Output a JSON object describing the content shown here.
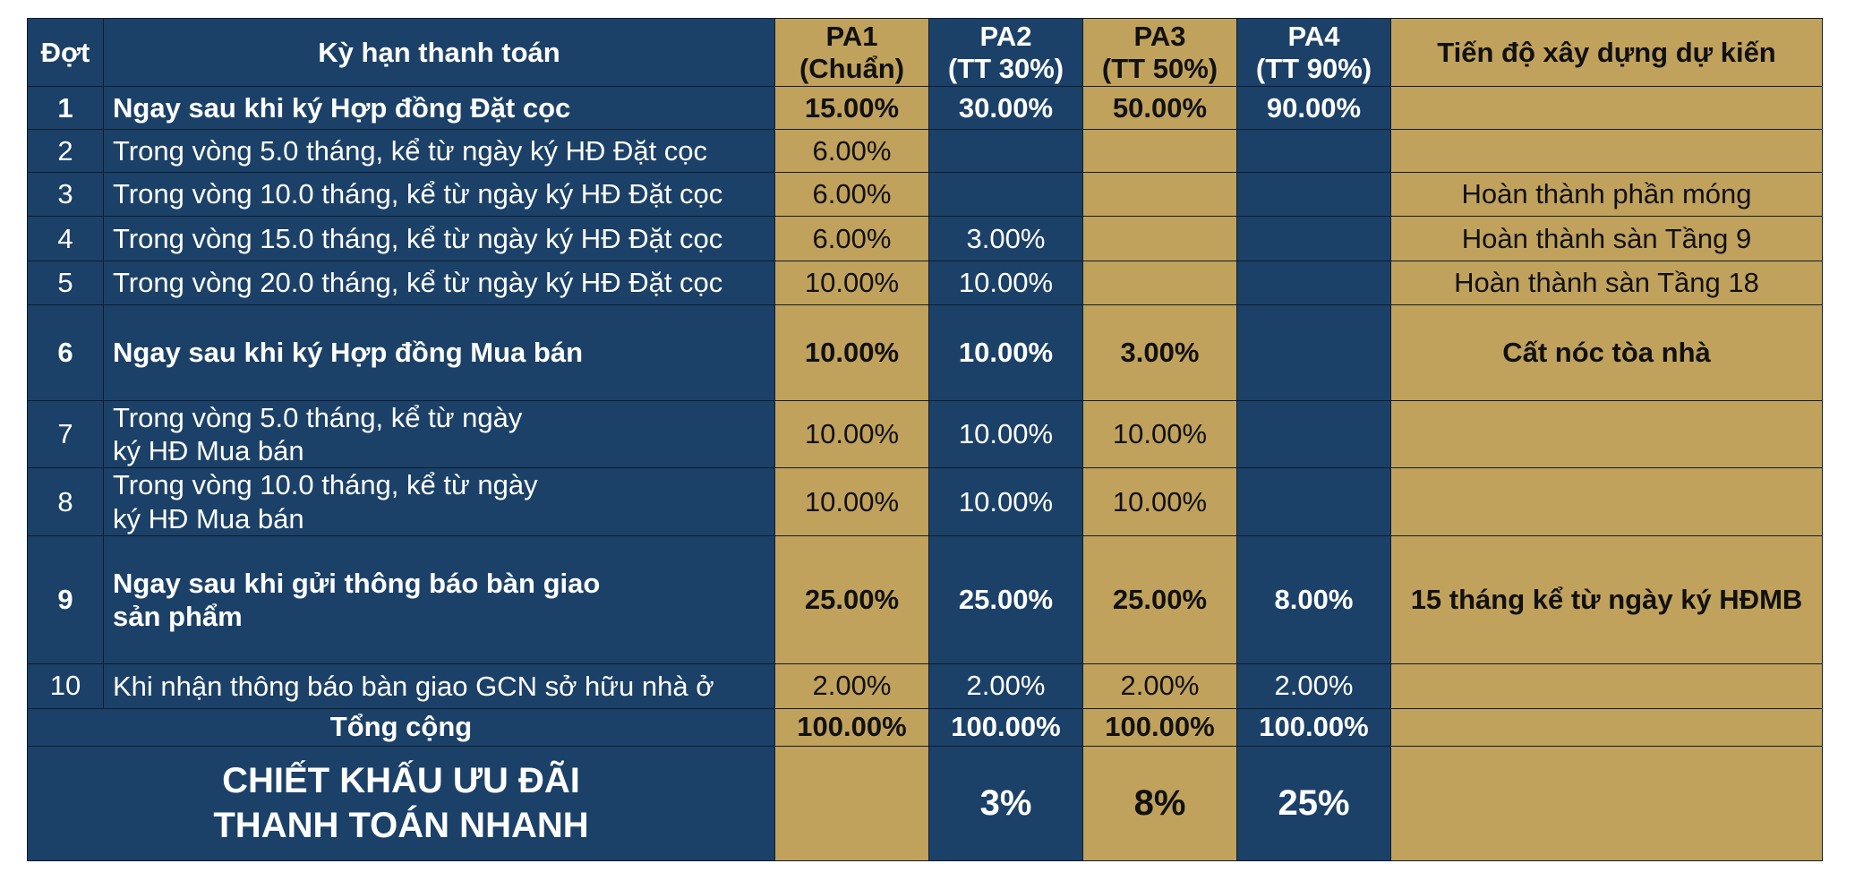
{
  "headers": {
    "dot": "Đợt",
    "ky_han": "Kỳ hạn thanh toán",
    "pa1": "PA1\n(Chuẩn)",
    "pa2": "PA2\n(TT 30%)",
    "pa3": "PA3\n(TT 50%)",
    "pa4": "PA4\n(TT 90%)",
    "tien_do": "Tiến độ xây dựng dự kiến"
  },
  "rows": [
    {
      "dot": "1",
      "ky_han": "Ngay sau khi ký Hợp đồng Đặt cọc",
      "pa1": "15.00%",
      "pa2": "30.00%",
      "pa3": "50.00%",
      "pa4": "90.00%",
      "tien_do": ""
    },
    {
      "dot": "2",
      "ky_han": "Trong vòng 5.0 tháng, kể từ ngày ký HĐ Đặt cọc",
      "pa1": "6.00%",
      "pa2": "",
      "pa3": "",
      "pa4": "",
      "tien_do": ""
    },
    {
      "dot": "3",
      "ky_han": "Trong vòng 10.0 tháng, kể từ ngày ký HĐ Đặt cọc",
      "pa1": "6.00%",
      "pa2": "",
      "pa3": "",
      "pa4": "",
      "tien_do": "Hoàn thành phần móng"
    },
    {
      "dot": "4",
      "ky_han": "Trong vòng 15.0 tháng, kể từ ngày ký HĐ Đặt cọc",
      "pa1": "6.00%",
      "pa2": "3.00%",
      "pa3": "",
      "pa4": "",
      "tien_do": "Hoàn thành sàn Tầng 9"
    },
    {
      "dot": "5",
      "ky_han": "Trong vòng 20.0 tháng, kể từ ngày ký HĐ Đặt cọc",
      "pa1": "10.00%",
      "pa2": "10.00%",
      "pa3": "",
      "pa4": "",
      "tien_do": "Hoàn thành sàn Tầng 18"
    },
    {
      "dot": "6",
      "ky_han": "Ngay sau khi ký Hợp đồng Mua bán",
      "pa1": "10.00%",
      "pa2": "10.00%",
      "pa3": "3.00%",
      "pa4": "",
      "tien_do": "Cất nóc tòa nhà"
    },
    {
      "dot": "7",
      "ky_han": "Trong vòng 5.0 tháng, kể từ ngày\nký HĐ Mua bán",
      "pa1": "10.00%",
      "pa2": "10.00%",
      "pa3": "10.00%",
      "pa4": "",
      "tien_do": ""
    },
    {
      "dot": "8",
      "ky_han": "Trong vòng 10.0 tháng, kể từ ngày\nký HĐ Mua bán",
      "pa1": "10.00%",
      "pa2": "10.00%",
      "pa3": "10.00%",
      "pa4": "",
      "tien_do": ""
    },
    {
      "dot": "9",
      "ky_han": "Ngay sau khi gửi thông báo bàn giao\nsản phẩm",
      "pa1": "25.00%",
      "pa2": "25.00%",
      "pa3": "25.00%",
      "pa4": "8.00%",
      "tien_do": "15 tháng kể từ ngày ký HĐMB"
    },
    {
      "dot": "10",
      "ky_han": "Khi nhận thông báo bàn giao GCN sở hữu nhà ở",
      "pa1": "2.00%",
      "pa2": "2.00%",
      "pa3": "2.00%",
      "pa4": "2.00%",
      "tien_do": ""
    }
  ],
  "total": {
    "label": "Tổng cộng",
    "pa1": "100.00%",
    "pa2": "100.00%",
    "pa3": "100.00%",
    "pa4": "100.00%"
  },
  "discount": {
    "label": "CHIẾT KHẤU ƯU ĐÃI\nTHANH TOÁN NHANH",
    "pa1": "",
    "pa2": "3%",
    "pa3": "8%",
    "pa4": "25%"
  },
  "colors": {
    "navy": "#1c4168",
    "gold": "#c0a25c"
  }
}
